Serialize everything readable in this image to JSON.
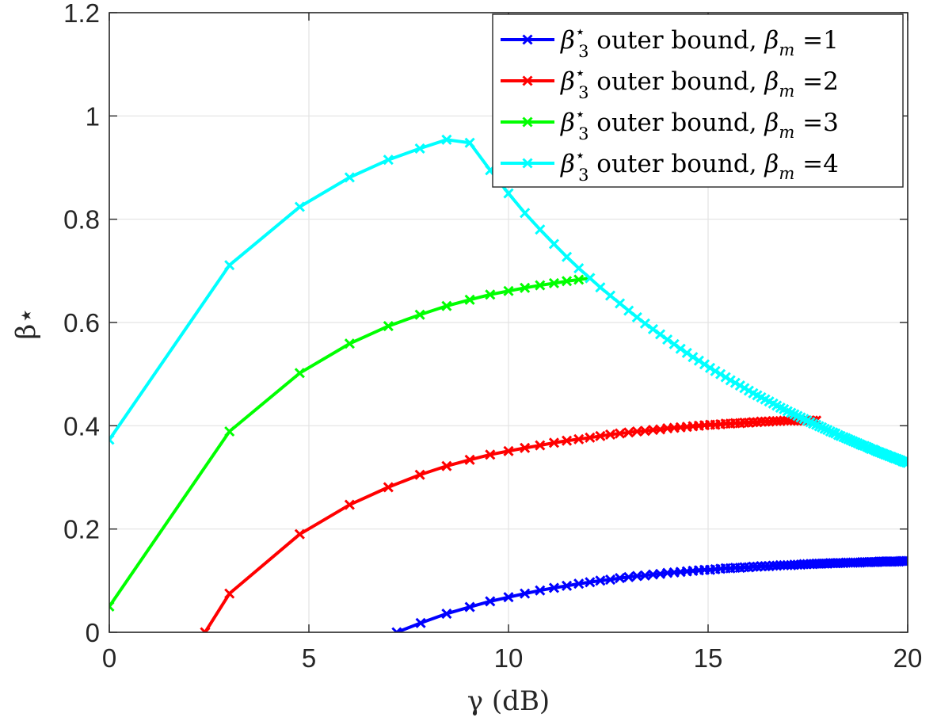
{
  "chart_data": {
    "type": "line",
    "xlabel": "γ (dB)",
    "ylabel": "β⋆",
    "xlim": [
      0,
      20
    ],
    "ylim": [
      0,
      1.2
    ],
    "grid": true,
    "legend_position": "top-right",
    "x_ticks": [
      "0",
      "5",
      "10",
      "15",
      "20"
    ],
    "y_ticks": [
      "0",
      "0.2",
      "0.4",
      "0.6",
      "0.8",
      "1",
      "1.2"
    ],
    "x_tick_values": [
      0,
      5,
      10,
      15,
      20
    ],
    "y_tick_values": [
      0,
      0.2,
      0.4,
      0.6,
      0.8,
      1.0,
      1.2
    ],
    "series": [
      {
        "name": "β3⋆ outer bound, βm =1",
        "legend": {
          "base": "β",
          "sub": "3",
          "sup": "⋆",
          "mid": " outer bound, ",
          "base2": "β",
          "sub2": "m",
          "tail": " =1"
        },
        "color": "#0000ff",
        "marker": "x",
        "x": [
          7.2,
          7.8,
          8.45,
          9.03,
          9.54,
          10.0,
          10.41,
          10.79,
          11.14,
          11.46,
          11.76,
          12.04,
          12.3,
          12.55,
          12.79,
          13.01,
          13.22,
          13.42,
          13.62,
          13.8,
          13.98,
          14.15,
          14.31,
          14.47,
          14.62,
          14.77,
          14.91,
          15.05,
          15.18,
          15.31,
          15.44,
          15.56,
          15.68,
          15.8,
          15.91,
          16.02,
          16.13,
          16.23,
          16.33,
          16.43,
          16.53,
          16.63,
          16.72,
          16.81,
          16.9,
          16.99,
          17.08,
          17.16,
          17.24,
          17.32,
          17.4,
          17.48,
          17.56,
          17.63,
          17.71,
          17.78,
          17.85,
          17.92,
          17.99,
          18.06,
          18.13,
          18.19,
          18.26,
          18.32,
          18.39,
          18.45,
          18.51,
          18.57,
          18.63,
          18.69,
          18.75,
          18.81,
          18.86,
          18.92,
          18.98,
          19.03,
          19.08,
          19.14,
          19.19,
          19.24,
          19.29,
          19.34,
          19.39,
          19.44,
          19.49,
          19.54,
          19.59,
          19.64,
          19.68,
          19.73,
          19.78,
          19.82,
          19.87,
          19.91,
          19.96,
          20.0
        ],
        "y": [
          0.0,
          0.018,
          0.036,
          0.049,
          0.06,
          0.068,
          0.075,
          0.081,
          0.086,
          0.09,
          0.094,
          0.097,
          0.1,
          0.102,
          0.105,
          0.107,
          0.109,
          0.11,
          0.112,
          0.113,
          0.115,
          0.116,
          0.117,
          0.118,
          0.119,
          0.12,
          0.121,
          0.121,
          0.122,
          0.123,
          0.124,
          0.124,
          0.125,
          0.125,
          0.126,
          0.126,
          0.127,
          0.127,
          0.128,
          0.128,
          0.128,
          0.129,
          0.129,
          0.13,
          0.13,
          0.13,
          0.13,
          0.131,
          0.131,
          0.131,
          0.132,
          0.132,
          0.132,
          0.132,
          0.133,
          0.133,
          0.133,
          0.133,
          0.133,
          0.134,
          0.134,
          0.134,
          0.134,
          0.134,
          0.134,
          0.135,
          0.135,
          0.135,
          0.135,
          0.135,
          0.135,
          0.135,
          0.136,
          0.136,
          0.136,
          0.136,
          0.136,
          0.136,
          0.136,
          0.136,
          0.137,
          0.137,
          0.137,
          0.137,
          0.137,
          0.137,
          0.137,
          0.137,
          0.137,
          0.137,
          0.137,
          0.138,
          0.138,
          0.138,
          0.138,
          0.138
        ]
      },
      {
        "name": "β3⋆ outer bound, βm =2",
        "legend": {
          "base": "β",
          "sub": "3",
          "sup": "⋆",
          "mid": " outer bound, ",
          "base2": "β",
          "sub2": "m",
          "tail": " =2"
        },
        "color": "#ff0000",
        "marker": "x",
        "x": [
          2.4,
          3.01,
          4.77,
          6.02,
          6.99,
          7.78,
          8.45,
          9.03,
          9.54,
          10.0,
          10.41,
          10.79,
          11.14,
          11.46,
          11.76,
          12.04,
          12.3,
          12.55,
          12.79,
          13.01,
          13.22,
          13.42,
          13.62,
          13.8,
          13.98,
          14.15,
          14.31,
          14.47,
          14.62,
          14.77,
          14.91,
          15.05,
          15.18,
          15.31,
          15.44,
          15.56,
          15.68,
          15.8,
          15.91,
          16.02,
          16.13,
          16.23,
          16.33,
          16.43,
          16.53,
          16.63,
          16.72,
          16.81,
          16.9,
          16.99,
          17.08,
          17.16,
          17.24,
          17.32,
          17.4,
          17.48,
          17.56,
          17.63,
          17.71
        ],
        "y": [
          0.0,
          0.075,
          0.19,
          0.247,
          0.281,
          0.305,
          0.322,
          0.334,
          0.344,
          0.351,
          0.357,
          0.362,
          0.367,
          0.371,
          0.374,
          0.377,
          0.38,
          0.383,
          0.385,
          0.387,
          0.389,
          0.39,
          0.392,
          0.393,
          0.395,
          0.396,
          0.397,
          0.398,
          0.399,
          0.4,
          0.401,
          0.402,
          0.402,
          0.403,
          0.404,
          0.404,
          0.405,
          0.405,
          0.406,
          0.406,
          0.407,
          0.407,
          0.408,
          0.408,
          0.408,
          0.409,
          0.409,
          0.409,
          0.41,
          0.41,
          0.41,
          0.41,
          0.41,
          0.41,
          0.41,
          0.41,
          0.41,
          0.41,
          0.41
        ]
      },
      {
        "name": "β3⋆ outer bound, βm =3",
        "legend": {
          "base": "β",
          "sub": "3",
          "sup": "⋆",
          "mid": " outer bound, ",
          "base2": "β",
          "sub2": "m",
          "tail": " =3"
        },
        "color": "#00ff00",
        "marker": "x",
        "x": [
          0.0,
          3.01,
          4.77,
          6.02,
          6.99,
          7.78,
          8.45,
          9.03,
          9.54,
          10.0,
          10.41,
          10.79,
          11.14,
          11.46,
          11.76,
          12.04
        ],
        "y": [
          0.05,
          0.389,
          0.502,
          0.559,
          0.593,
          0.615,
          0.632,
          0.644,
          0.654,
          0.661,
          0.667,
          0.672,
          0.676,
          0.68,
          0.683,
          0.686
        ]
      },
      {
        "name": "β3⋆ outer bound, βm =4",
        "legend": {
          "base": "β",
          "sub": "3",
          "sup": "⋆",
          "mid": " outer bound, ",
          "base2": "β",
          "sub2": "m",
          "tail": " =4"
        },
        "color": "#00ffff",
        "marker": "x",
        "x": [
          0.0,
          3.01,
          4.77,
          6.02,
          6.99,
          7.78,
          8.45,
          9.03,
          9.54,
          10.0,
          10.41,
          10.79,
          11.14,
          11.46,
          11.76,
          12.04,
          12.3,
          12.55,
          12.79,
          13.01,
          13.22,
          13.42,
          13.62,
          13.8,
          13.98,
          14.15,
          14.31,
          14.47,
          14.62,
          14.77,
          14.91,
          15.05,
          15.18,
          15.31,
          15.44,
          15.56,
          15.68,
          15.8,
          15.91,
          16.02,
          16.13,
          16.23,
          16.33,
          16.43,
          16.53,
          16.63,
          16.72,
          16.81,
          16.9,
          16.99,
          17.08,
          17.16,
          17.24,
          17.32,
          17.4,
          17.48,
          17.56,
          17.63,
          17.71,
          17.78,
          17.85,
          17.92,
          17.99,
          18.06,
          18.13,
          18.19,
          18.26,
          18.32,
          18.39,
          18.45,
          18.51,
          18.57,
          18.63,
          18.69,
          18.75,
          18.81,
          18.86,
          18.92,
          18.98,
          19.03,
          19.08,
          19.14,
          19.19,
          19.24,
          19.29,
          19.34,
          19.39,
          19.44,
          19.49,
          19.54,
          19.59,
          19.64,
          19.68,
          19.73,
          19.78,
          19.82,
          19.87,
          19.91,
          19.96,
          20.0
        ],
        "y": [
          0.373,
          0.711,
          0.824,
          0.881,
          0.915,
          0.937,
          0.954,
          0.948,
          0.895,
          0.85,
          0.812,
          0.78,
          0.752,
          0.727,
          0.705,
          0.686,
          0.668,
          0.652,
          0.637,
          0.623,
          0.61,
          0.598,
          0.587,
          0.577,
          0.567,
          0.558,
          0.549,
          0.541,
          0.533,
          0.526,
          0.519,
          0.512,
          0.506,
          0.5,
          0.494,
          0.488,
          0.483,
          0.478,
          0.473,
          0.468,
          0.463,
          0.459,
          0.455,
          0.451,
          0.447,
          0.443,
          0.439,
          0.435,
          0.432,
          0.428,
          0.425,
          0.422,
          0.419,
          0.416,
          0.413,
          0.41,
          0.407,
          0.404,
          0.402,
          0.399,
          0.397,
          0.394,
          0.392,
          0.389,
          0.387,
          0.385,
          0.382,
          0.38,
          0.378,
          0.376,
          0.374,
          0.372,
          0.37,
          0.368,
          0.366,
          0.364,
          0.362,
          0.361,
          0.359,
          0.357,
          0.355,
          0.354,
          0.352,
          0.35,
          0.349,
          0.347,
          0.346,
          0.344,
          0.343,
          0.341,
          0.34,
          0.338,
          0.337,
          0.336,
          0.334,
          0.333,
          0.331,
          0.33,
          0.329,
          0.328
        ]
      }
    ]
  }
}
